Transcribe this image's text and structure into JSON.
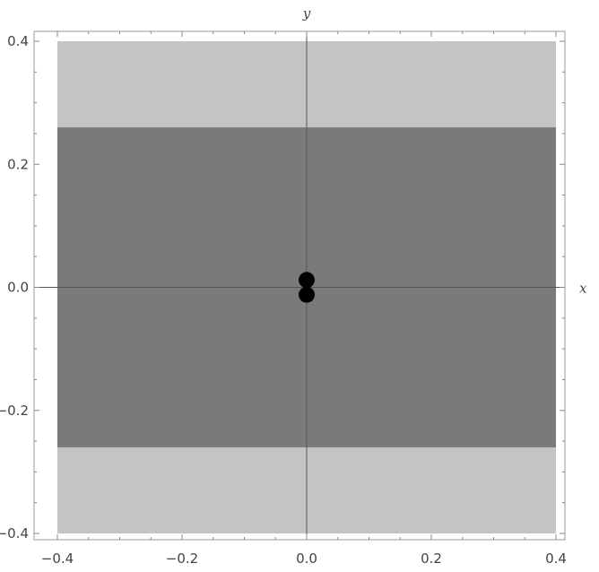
{
  "chart_data": {
    "type": "scatter",
    "title": "",
    "xlabel": "x",
    "ylabel": "y",
    "xlim": [
      -0.4,
      0.4
    ],
    "ylim": [
      -0.4,
      0.4
    ],
    "x_ticks": [
      -0.4,
      -0.2,
      0.0,
      0.2,
      0.4
    ],
    "y_ticks": [
      -0.4,
      -0.2,
      0.0,
      0.2,
      0.4
    ],
    "x_tick_labels": [
      "-0.4",
      "-0.2",
      "0.0",
      "0.2",
      "0.4"
    ],
    "y_tick_labels": [
      "-0.4",
      "-0.2",
      "0.0",
      "0.2",
      "0.4"
    ],
    "grid": false,
    "regions": [
      {
        "x": [
          -0.4,
          0.4
        ],
        "y": [
          -0.4,
          0.4
        ],
        "color": "#c4c4c4"
      },
      {
        "x": [
          -0.4,
          0.4
        ],
        "y": [
          -0.26,
          0.26
        ],
        "color": "#7a7a7a"
      }
    ],
    "points": [
      {
        "x": 0.0,
        "y": 0.012
      },
      {
        "x": 0.0,
        "y": -0.012
      }
    ],
    "point_color": "#000000",
    "axis_color": "#555555"
  }
}
